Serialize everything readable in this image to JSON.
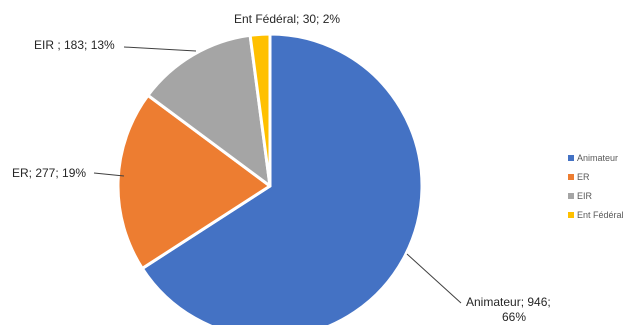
{
  "chart_data": {
    "type": "pie",
    "title": "",
    "categories": [
      "Animateur",
      "ER",
      "EIR",
      "Ent Fédéral"
    ],
    "values": [
      946,
      277,
      183,
      30
    ],
    "percents": [
      "66%",
      "19%",
      "13%",
      "2%"
    ],
    "colors": [
      "#4472C4",
      "#ED7D31",
      "#A5A5A5",
      "#FFC000"
    ],
    "data_labels": [
      "Animateur; 946;",
      "ER; 277; 19%",
      "EIR ; 183; 13%",
      "Ent Fédéral; 30; 2%"
    ],
    "data_label_second_line": "66%",
    "legend_position": "right"
  }
}
